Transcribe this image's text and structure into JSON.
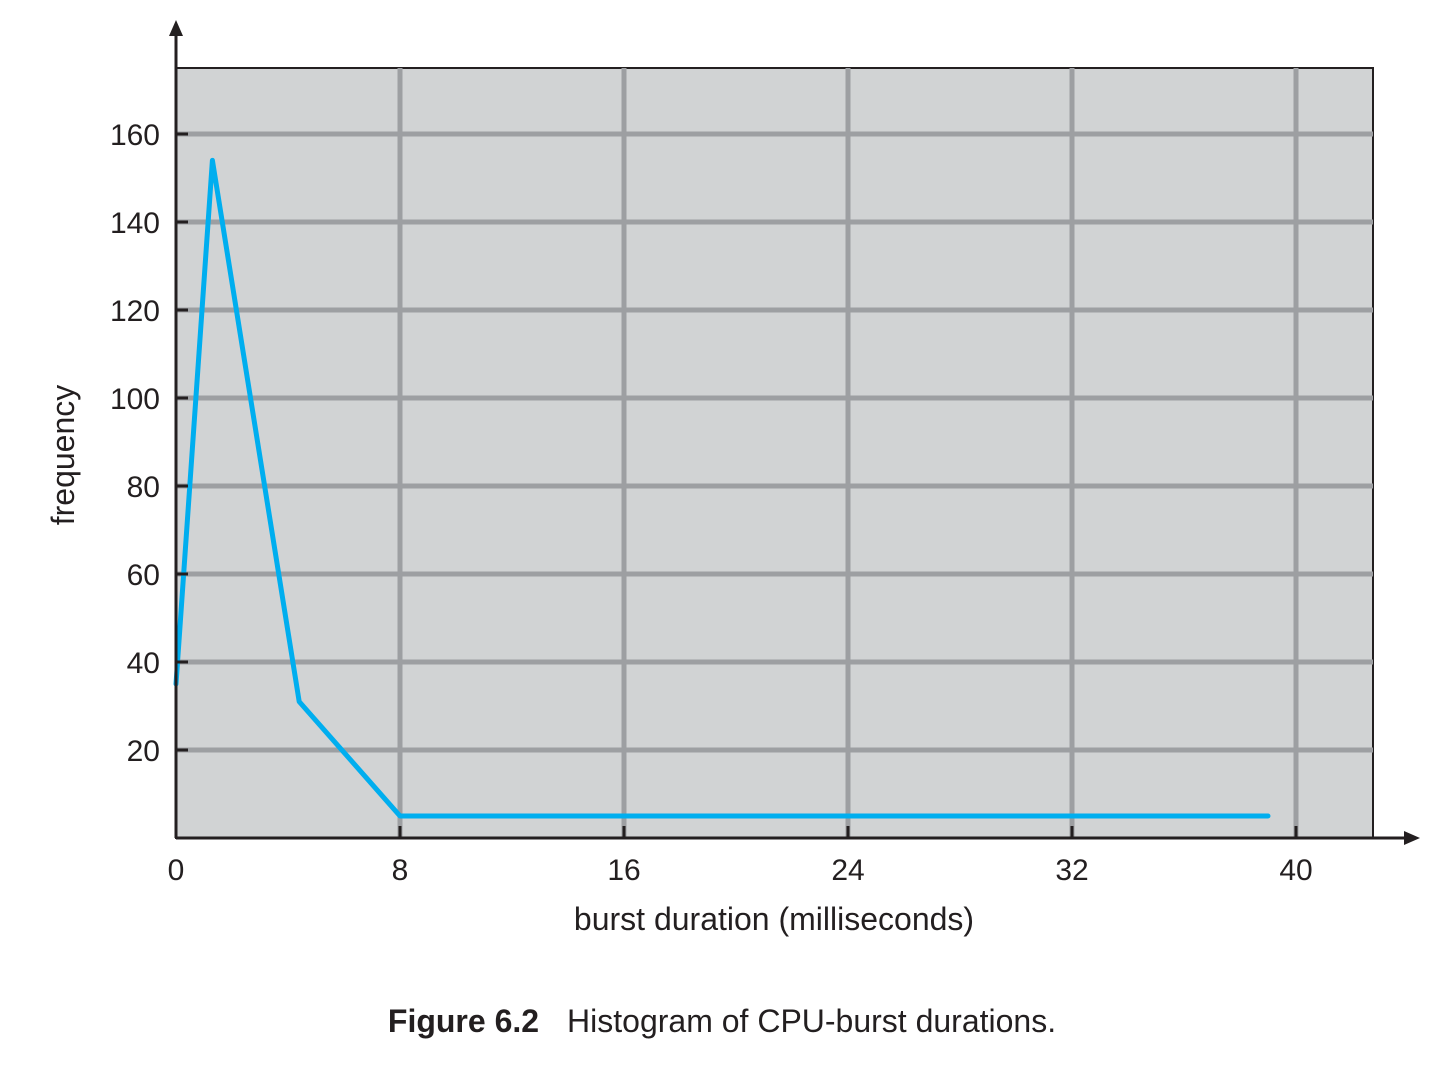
{
  "chart_data": {
    "type": "line",
    "title": "",
    "xlabel": "burst duration (milliseconds)",
    "ylabel": "frequency",
    "xlim": [
      0,
      43
    ],
    "ylim": [
      0,
      175
    ],
    "xticks": [
      0,
      8,
      16,
      24,
      32,
      40
    ],
    "yticks": [
      20,
      40,
      60,
      80,
      100,
      120,
      140,
      160
    ],
    "grid": true,
    "series": [
      {
        "x": [
          0,
          1.3,
          4.4,
          8,
          16,
          24,
          32,
          39
        ],
        "y": [
          35,
          154,
          31,
          5,
          5,
          5,
          5,
          5
        ]
      }
    ],
    "colors": {
      "line": "#00aeef",
      "plot_background": "#d1d3d4",
      "grid": "#9d9fa2",
      "axis": "#231f20"
    }
  },
  "caption": {
    "figure_number": "Figure 6.2",
    "text": "Histogram of CPU-burst durations."
  }
}
